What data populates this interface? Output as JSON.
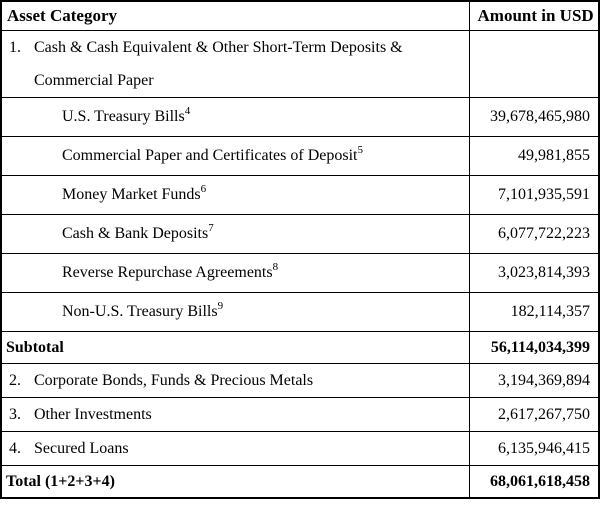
{
  "table": {
    "columns": [
      {
        "label": "Asset Category"
      },
      {
        "label": "Amount in USD"
      }
    ],
    "rows": [
      {
        "style": "group",
        "num": "1.",
        "label": "Cash & Cash Equivalent & Other Short-Term Deposits & Commercial Paper",
        "sup": "",
        "amount": ""
      },
      {
        "style": "sub",
        "num": "",
        "label": "U.S. Treasury Bills",
        "sup": "4",
        "amount": "39,678,465,980"
      },
      {
        "style": "sub",
        "num": "",
        "label": "Commercial Paper and Certificates of Deposit",
        "sup": "5",
        "amount": "49,981,855"
      },
      {
        "style": "sub",
        "num": "",
        "label": "Money Market Funds",
        "sup": "6",
        "amount": "7,101,935,591"
      },
      {
        "style": "sub",
        "num": "",
        "label": "Cash & Bank Deposits",
        "sup": "7",
        "amount": "6,077,722,223"
      },
      {
        "style": "sub",
        "num": "",
        "label": "Reverse Repurchase Agreements",
        "sup": "8",
        "amount": "3,023,814,393"
      },
      {
        "style": "sub",
        "num": "",
        "label": "Non-U.S. Treasury Bills",
        "sup": "9",
        "amount": "182,114,357"
      },
      {
        "style": "bold",
        "num": "",
        "label": "Subtotal",
        "sup": "",
        "amount": "56,114,034,399"
      },
      {
        "style": "numbered",
        "num": "2.",
        "label": "Corporate Bonds, Funds & Precious Metals",
        "sup": "",
        "amount": "3,194,369,894"
      },
      {
        "style": "numbered",
        "num": "3.",
        "label": "Other Investments",
        "sup": "",
        "amount": "2,617,267,750"
      },
      {
        "style": "numbered",
        "num": "4.",
        "label": "Secured Loans",
        "sup": "",
        "amount": "6,135,946,415"
      },
      {
        "style": "bold",
        "num": "",
        "label": "Total (1+2+3+4)",
        "sup": "",
        "amount": "68,061,618,458"
      }
    ],
    "colors": {
      "border": "#000000",
      "text": "#000000",
      "background": "#ffffff"
    }
  }
}
